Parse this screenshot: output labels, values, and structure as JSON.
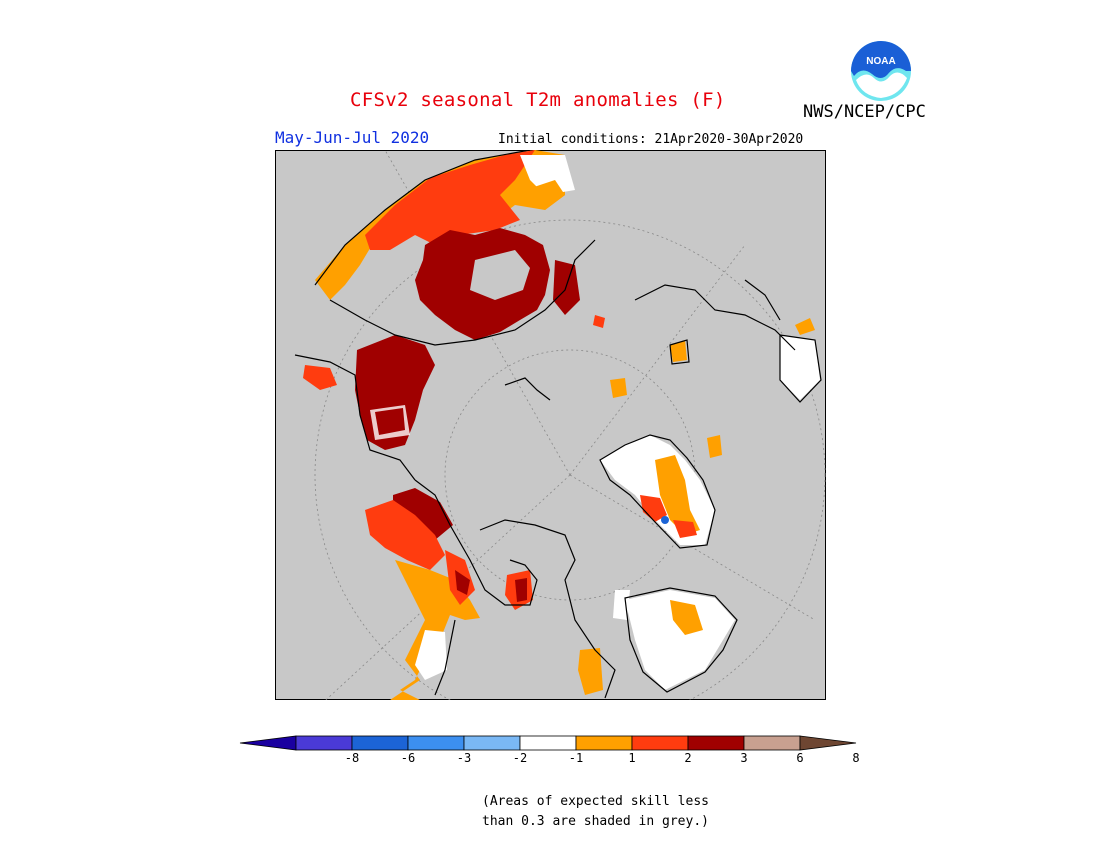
{
  "header": {
    "title": "CFSv2 seasonal T2m anomalies (F)",
    "agency": "NWS/NCEP/CPC",
    "period": "May-Jun-Jul 2020",
    "initial_conditions": "Initial conditions: 21Apr2020-30Apr2020"
  },
  "logo": {
    "text": "NOAA",
    "icon": "noaa-logo-icon",
    "colors": [
      "#1a5fd6",
      "#6fe6ef",
      "#ffffff"
    ]
  },
  "map": {
    "projection": "north polar stereographic",
    "background_color": "#c8c8c8",
    "land_outline_color": "#000000"
  },
  "legend": {
    "ticks": [
      "-8",
      "-6",
      "-3",
      "-2",
      "-1",
      "1",
      "2",
      "3",
      "6",
      "8"
    ],
    "colors": [
      "#1a00a0",
      "#4a3ad6",
      "#1c64d6",
      "#3c8ff0",
      "#7ab8f5",
      "#ffffff",
      "#ffa000",
      "#ff3c0f",
      "#a00000",
      "#c8a090",
      "#6e4632"
    ],
    "range_labels": [
      "< -8",
      "-8 to -6",
      "-6 to -3",
      "-3 to -2",
      "-2 to -1",
      "-1 to 1",
      "1 to 2",
      "2 to 3",
      "3 to 6",
      "6 to 8",
      "> 8"
    ]
  },
  "note": {
    "line1": "(Areas of expected skill less",
    "line2": "than 0.3 are shaded in grey.)"
  }
}
